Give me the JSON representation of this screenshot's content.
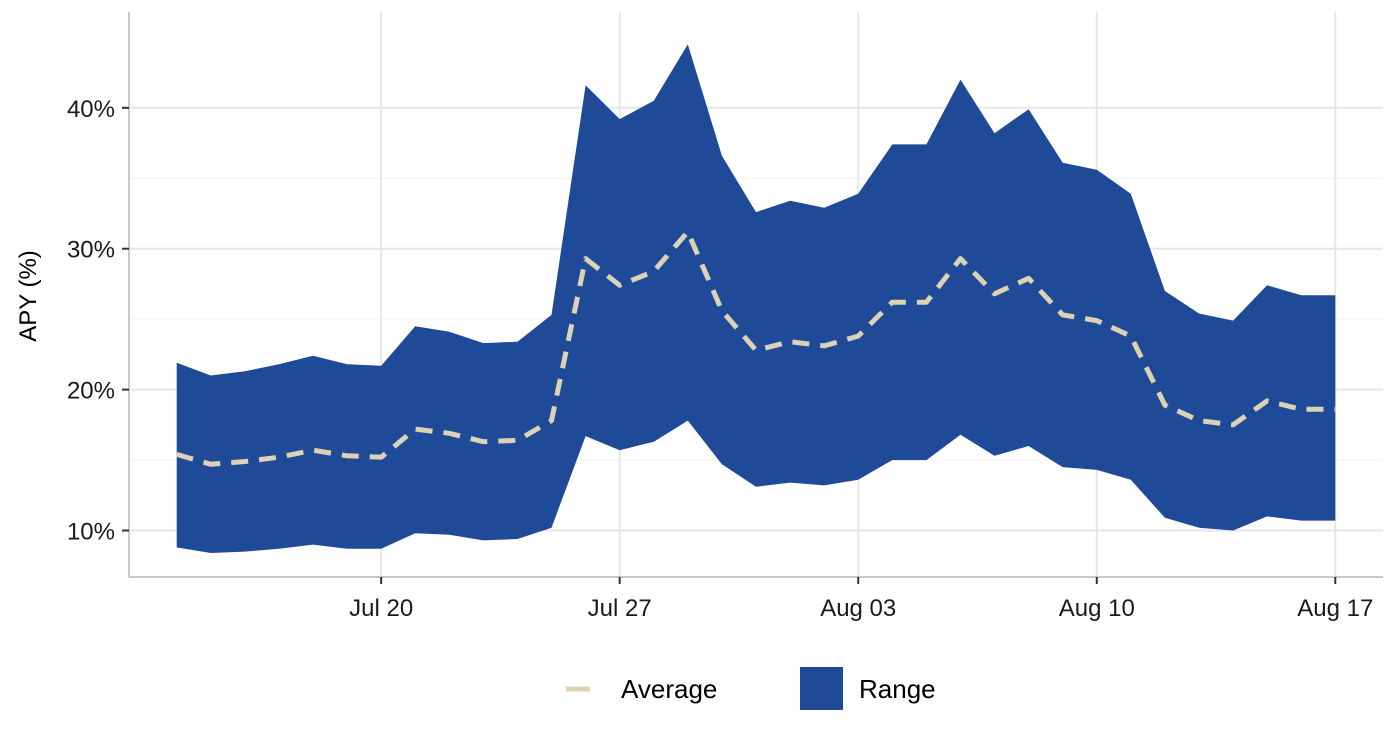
{
  "chart_data": {
    "type": "area",
    "ylabel": "APY (%)",
    "xlabel": "",
    "ylim": [
      6.7,
      46.8
    ],
    "xlim": [
      "2020-07-12 14:24",
      "2020-08-18 09:36"
    ],
    "x_tick_labels": [
      {
        "date": "2020-07-20",
        "label": "Jul 20"
      },
      {
        "date": "2020-07-27",
        "label": "Jul 27"
      },
      {
        "date": "2020-08-03",
        "label": "Aug 03"
      },
      {
        "date": "2020-08-10",
        "label": "Aug 10"
      },
      {
        "date": "2020-08-17",
        "label": "Aug 17"
      }
    ],
    "y_ticks": [
      {
        "value": 10,
        "label": "10%"
      },
      {
        "value": 20,
        "label": "20%"
      },
      {
        "value": 30,
        "label": "30%"
      },
      {
        "value": 40,
        "label": "40%"
      }
    ],
    "grid": true,
    "legend_position": "bottom",
    "series": [
      {
        "name": "Average",
        "style": "dashed-line",
        "color": "#DDD2B4",
        "x": [
          "2020-07-14",
          "2020-07-15",
          "2020-07-16",
          "2020-07-17",
          "2020-07-18",
          "2020-07-19",
          "2020-07-20",
          "2020-07-21",
          "2020-07-22",
          "2020-07-23",
          "2020-07-24",
          "2020-07-25",
          "2020-07-26",
          "2020-07-27",
          "2020-07-28",
          "2020-07-29",
          "2020-07-30",
          "2020-07-31",
          "2020-08-01",
          "2020-08-02",
          "2020-08-03",
          "2020-08-04",
          "2020-08-05",
          "2020-08-06",
          "2020-08-07",
          "2020-08-08",
          "2020-08-09",
          "2020-08-10",
          "2020-08-11",
          "2020-08-12",
          "2020-08-13",
          "2020-08-14",
          "2020-08-15",
          "2020-08-16",
          "2020-08-17"
        ],
        "values": [
          15.4,
          14.7,
          14.9,
          15.2,
          15.7,
          15.3,
          15.2,
          17.2,
          16.9,
          16.3,
          16.4,
          17.8,
          29.3,
          27.4,
          28.4,
          31.2,
          25.6,
          22.8,
          23.4,
          23.1,
          23.8,
          26.2,
          26.2,
          29.3,
          26.8,
          27.9,
          25.3,
          24.9,
          23.8,
          18.9,
          17.8,
          17.5,
          19.2,
          18.6,
          18.6
        ]
      },
      {
        "name": "Range",
        "style": "ribbon",
        "color": "#1F4A97",
        "x": [
          "2020-07-14",
          "2020-07-15",
          "2020-07-16",
          "2020-07-17",
          "2020-07-18",
          "2020-07-19",
          "2020-07-20",
          "2020-07-21",
          "2020-07-22",
          "2020-07-23",
          "2020-07-24",
          "2020-07-25",
          "2020-07-26",
          "2020-07-27",
          "2020-07-28",
          "2020-07-29",
          "2020-07-30",
          "2020-07-31",
          "2020-08-01",
          "2020-08-02",
          "2020-08-03",
          "2020-08-04",
          "2020-08-05",
          "2020-08-06",
          "2020-08-07",
          "2020-08-08",
          "2020-08-09",
          "2020-08-10",
          "2020-08-11",
          "2020-08-12",
          "2020-08-13",
          "2020-08-14",
          "2020-08-15",
          "2020-08-16",
          "2020-08-17"
        ],
        "upper": [
          21.9,
          21.0,
          21.3,
          21.8,
          22.4,
          21.8,
          21.7,
          24.5,
          24.1,
          23.3,
          23.4,
          25.3,
          41.6,
          39.2,
          40.5,
          44.5,
          36.6,
          32.6,
          33.4,
          32.9,
          33.9,
          37.4,
          37.4,
          42.0,
          38.2,
          39.9,
          36.1,
          35.6,
          33.9,
          27.0,
          25.4,
          24.9,
          27.4,
          26.7,
          26.7
        ],
        "lower": [
          8.8,
          8.4,
          8.5,
          8.7,
          9.0,
          8.7,
          8.7,
          9.8,
          9.7,
          9.3,
          9.4,
          10.2,
          16.7,
          15.7,
          16.3,
          17.8,
          14.7,
          13.1,
          13.4,
          13.2,
          13.6,
          15.0,
          15.0,
          16.8,
          15.3,
          16.0,
          14.5,
          14.3,
          13.6,
          10.9,
          10.2,
          10.0,
          11.0,
          10.7,
          10.7
        ]
      }
    ]
  }
}
